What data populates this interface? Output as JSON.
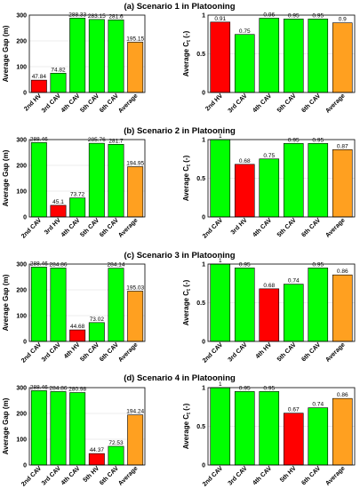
{
  "colors": {
    "hv": "#ff0000",
    "cav": "#00ff00",
    "average": "#ffa020"
  },
  "chart_data": [
    {
      "type": "bar",
      "title": "(a) Scenario 1 in Platooning",
      "left": {
        "ylabel": "Average Gap (m)",
        "ylim": [
          0,
          300
        ],
        "yticks": [
          "0",
          "100",
          "200",
          "300"
        ],
        "categories": [
          "2nd HV",
          "3rd CAV",
          "4th CAV",
          "5th CAV",
          "6th CAV",
          "Average"
        ],
        "values": [
          47.84,
          74.82,
          288.33,
          283.15,
          281.6,
          195.15
        ],
        "labels": [
          "47.84",
          "74.82",
          "288.33",
          "283.15",
          "281.6",
          "195.15"
        ]
      },
      "right": {
        "ylabel": "Average C",
        "ylabel_sub": "t",
        "ylabel_unit": " (-)",
        "ylim": [
          0,
          1
        ],
        "yticks": [
          "0",
          "0.5",
          "1"
        ],
        "categories": [
          "2nd HV",
          "3rd CAV",
          "4th CAV",
          "5th CAV",
          "6th CAV",
          "Average"
        ],
        "values": [
          0.91,
          0.75,
          0.96,
          0.95,
          0.95,
          0.9
        ],
        "labels": [
          "0.91",
          "0.75",
          "0.96",
          "0.95",
          "0.95",
          "0.9"
        ]
      }
    },
    {
      "type": "bar",
      "title": "(b) Scenario 2 in Platooning",
      "left": {
        "ylabel": "Average Gap (m)",
        "ylim": [
          0,
          300
        ],
        "yticks": [
          "0",
          "100",
          "200",
          "300"
        ],
        "categories": [
          "2nd CAV",
          "3rd HV",
          "4th CAV",
          "5th CAV",
          "6th CAV",
          "Average"
        ],
        "values": [
          288.46,
          45.1,
          73.72,
          285.76,
          281.7,
          194.95
        ],
        "labels": [
          "288.46",
          "45.1",
          "73.72",
          "285.76",
          "281.7",
          "194.95"
        ]
      },
      "right": {
        "ylabel": "Average C",
        "ylabel_sub": "t",
        "ylabel_unit": " (-)",
        "ylim": [
          0,
          1
        ],
        "yticks": [
          "0",
          "0.5",
          "1"
        ],
        "categories": [
          "2nd CAV",
          "3rd HV",
          "4th CAV",
          "5th CAV",
          "6th CAV",
          "Average"
        ],
        "values": [
          1,
          0.68,
          0.75,
          0.95,
          0.95,
          0.87
        ],
        "labels": [
          "1",
          "0.68",
          "0.75",
          "0.95",
          "0.95",
          "0.87"
        ]
      }
    },
    {
      "type": "bar",
      "title": "(c) Scenario 3 in Platooning",
      "left": {
        "ylabel": "Average Gap (m)",
        "ylim": [
          0,
          300
        ],
        "yticks": [
          "0",
          "100",
          "200",
          "300"
        ],
        "categories": [
          "2nd CAV",
          "3rd CAV",
          "4th HV",
          "5th CAV",
          "6th CAV",
          "Average"
        ],
        "values": [
          288.46,
          284.86,
          44.68,
          73.02,
          284.14,
          195.03
        ],
        "labels": [
          "288.46",
          "284.86",
          "44.68",
          "73.02",
          "284.14",
          "195.03"
        ]
      },
      "right": {
        "ylabel": "Average C",
        "ylabel_sub": "t",
        "ylabel_unit": " (-)",
        "ylim": [
          0,
          1
        ],
        "yticks": [
          "0",
          "0.5",
          "1"
        ],
        "categories": [
          "2nd CAV",
          "3rd CAV",
          "4th HV",
          "5th CAV",
          "6th CAV",
          "Average"
        ],
        "values": [
          1,
          0.95,
          0.68,
          0.74,
          0.95,
          0.86
        ],
        "labels": [
          "1",
          "0.95",
          "0.68",
          "0.74",
          "0.95",
          "0.86"
        ]
      }
    },
    {
      "type": "bar",
      "title": "(d) Scenario 4 in Platooning",
      "left": {
        "ylabel": "Average Gap (m)",
        "ylim": [
          0,
          300
        ],
        "yticks": [
          "0",
          "100",
          "200",
          "300"
        ],
        "categories": [
          "2nd CAV",
          "3rd CAV",
          "4th CAV",
          "5th HV",
          "6th CAV",
          "Average"
        ],
        "values": [
          288.46,
          284.86,
          280.98,
          44.37,
          72.53,
          194.24
        ],
        "labels": [
          "288.46",
          "284.86",
          "280.98",
          "44.37",
          "72.53",
          "194.24"
        ]
      },
      "right": {
        "ylabel": "Average C",
        "ylabel_sub": "t",
        "ylabel_unit": " (-)",
        "ylim": [
          0,
          1
        ],
        "yticks": [
          "0",
          "0.5",
          "1"
        ],
        "categories": [
          "2nd CAV",
          "3rd CAV",
          "4th CAV",
          "5th HV",
          "6th CAV",
          "Average"
        ],
        "values": [
          1,
          0.95,
          0.95,
          0.67,
          0.74,
          0.86
        ],
        "labels": [
          "1",
          "0.95",
          "0.95",
          "0.67",
          "0.74",
          "0.86"
        ]
      }
    }
  ]
}
